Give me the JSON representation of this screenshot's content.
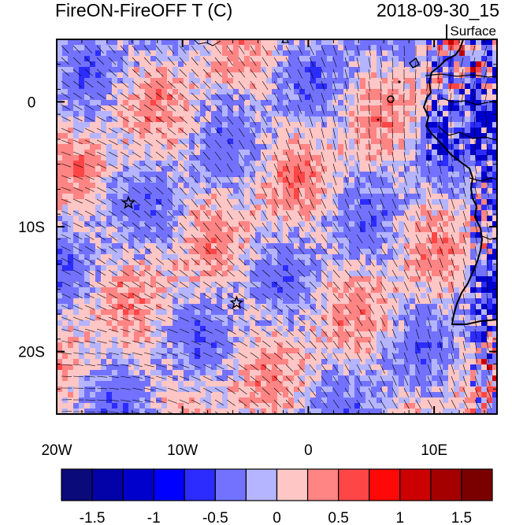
{
  "title_left": "FireON-FireOFF T (C)",
  "title_right": "2018-09-30_15",
  "level_label": "Surface",
  "map": {
    "lon_range": [
      -20,
      15
    ],
    "lat_range": [
      -25,
      5
    ],
    "x_ticks": [
      {
        "lon": -20,
        "label": "20W"
      },
      {
        "lon": -10,
        "label": "10W"
      },
      {
        "lon": 0,
        "label": "0"
      },
      {
        "lon": 10,
        "label": "10E"
      }
    ],
    "y_ticks": [
      {
        "lat": 0,
        "label": "0"
      },
      {
        "lat": -10,
        "label": "10S"
      },
      {
        "lat": -20,
        "label": "20S"
      }
    ],
    "markers": [
      {
        "name": "star-marker",
        "lon": -14.3,
        "lat": -8.1
      },
      {
        "name": "star-marker",
        "lon": -5.7,
        "lat": -16.1
      }
    ],
    "wind_vectors": "short black line segments overlaid on the field",
    "coastline_color": "#000000"
  },
  "colorbar": {
    "colors": [
      "#0a0a7a",
      "#0202a8",
      "#0000cc",
      "#0000ff",
      "#2c2cff",
      "#7272ff",
      "#b4b4ff",
      "#ffc6c6",
      "#ff8484",
      "#ff4646",
      "#ff0808",
      "#cc0000",
      "#a50000",
      "#7a0000"
    ],
    "tick_labels": [
      "-1.5",
      "-1",
      "-0.5",
      "0",
      "0.5",
      "1",
      "1.5"
    ]
  }
}
